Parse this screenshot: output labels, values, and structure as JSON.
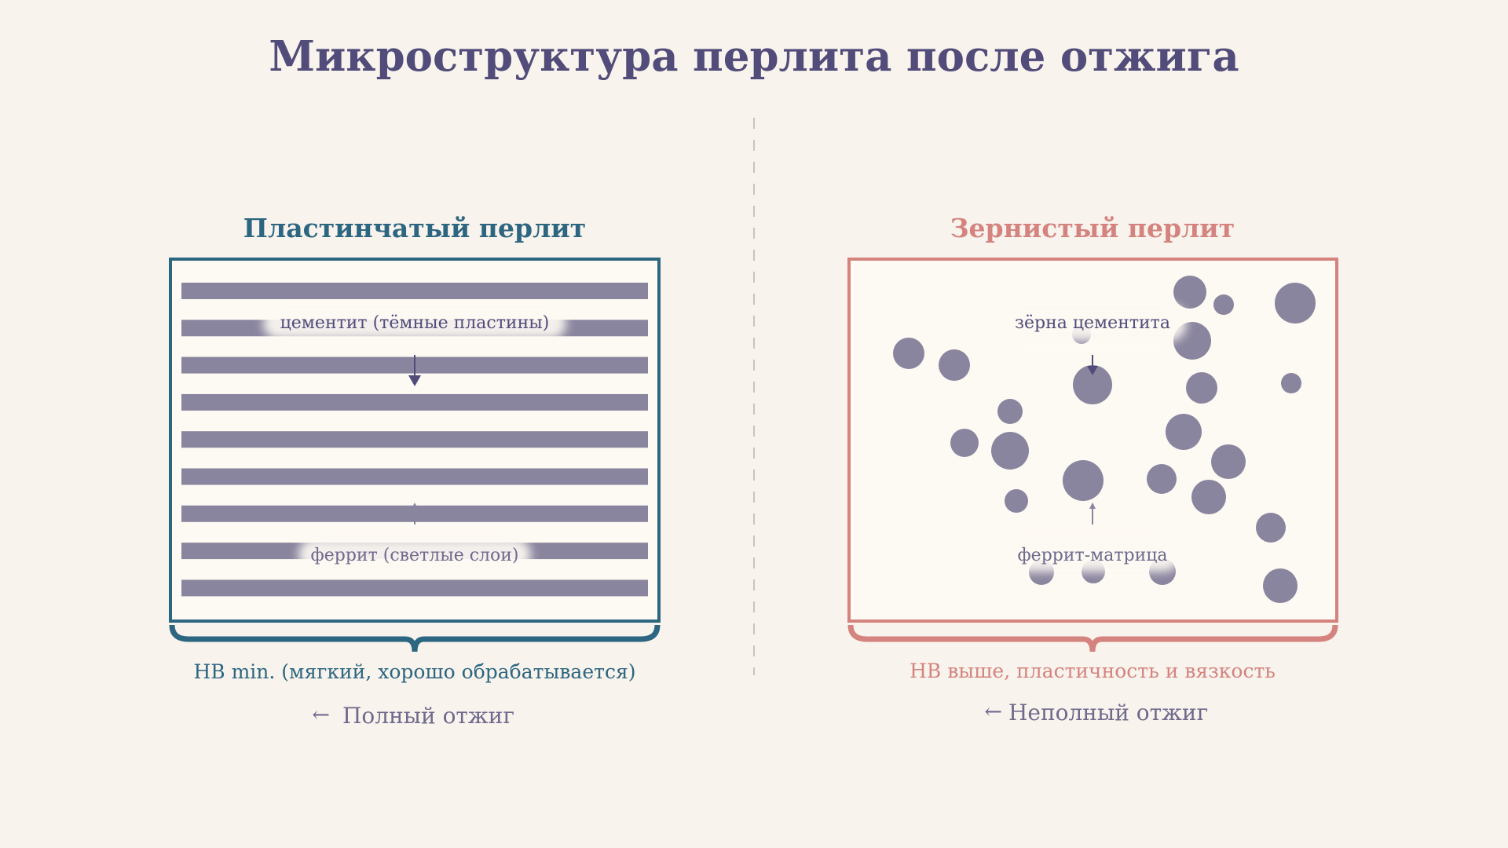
{
  "title": "Микроструктура перлита после отжига",
  "colors": {
    "background": "#f9f3ed",
    "title": "#514c79",
    "lamellar": "#2c6680",
    "granular": "#d4837e",
    "phase": "#8a859e",
    "panel_fill": "#fdf9f3",
    "muted_text": "#6f6a8c"
  },
  "left": {
    "heading": "Пластинчатый перлит",
    "label_top": "цементит (тёмные пластины)",
    "label_bottom": "феррит (светлые слои)",
    "property": "HB min. (мягкий, хорошо обрабатывается)",
    "process": "Полный отжиг",
    "process_arrow": "←",
    "plate_count": 9
  },
  "right": {
    "heading": "Зернистый перлит",
    "label_top": "зёрна цементита",
    "label_bottom": "феррит-матрица",
    "property": "HB выше, пластичность и вязкость",
    "process": "Неполный отжиг",
    "process_arrow": "←"
  }
}
